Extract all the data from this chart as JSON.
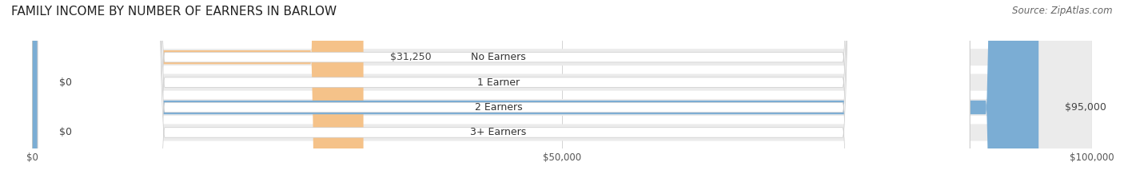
{
  "title": "FAMILY INCOME BY NUMBER OF EARNERS IN BARLOW",
  "source": "Source: ZipAtlas.com",
  "categories": [
    "No Earners",
    "1 Earner",
    "2 Earners",
    "3+ Earners"
  ],
  "values": [
    31250,
    0,
    95000,
    0
  ],
  "bar_colors": [
    "#f5c289",
    "#e89090",
    "#7badd4",
    "#c4a8d4"
  ],
  "row_bg_color": "#ebebeb",
  "xlim": [
    0,
    100000
  ],
  "xticks": [
    0,
    50000,
    100000
  ],
  "xtick_labels": [
    "$0",
    "$50,000",
    "$100,000"
  ],
  "value_labels": [
    "$31,250",
    "$0",
    "$95,000",
    "$0"
  ],
  "bar_height": 0.55,
  "label_fontsize": 9,
  "title_fontsize": 11,
  "source_fontsize": 8.5
}
